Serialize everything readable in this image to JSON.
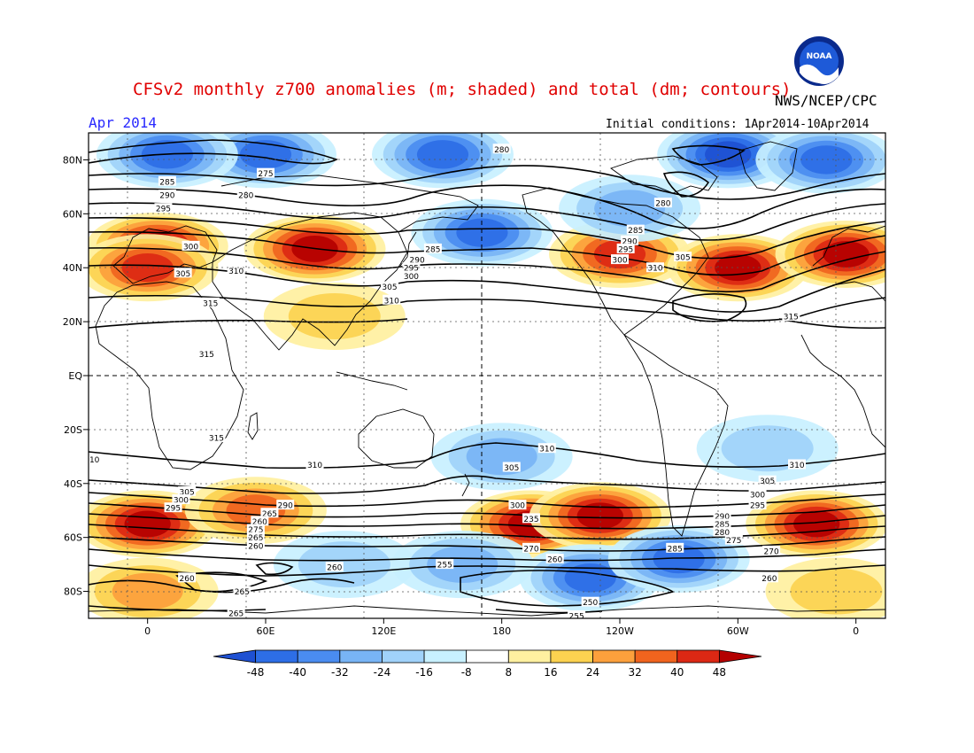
{
  "header": {
    "title": "CFSv2 monthly z700 anomalies (m; shaded) and total (dm; contours)",
    "agency": "NWS/NCEP/CPC",
    "period": "Apr 2014",
    "initial_conditions": "Initial conditions: 1Apr2014-10Apr2014",
    "logo_text": "NOAA"
  },
  "map": {
    "lat_labels": [
      "80N",
      "60N",
      "40N",
      "20N",
      "EQ",
      "20S",
      "40S",
      "60S",
      "80S"
    ],
    "lon_labels": [
      "0",
      "60E",
      "120E",
      "180",
      "120W",
      "60W",
      "0"
    ],
    "lat_values": [
      80,
      60,
      40,
      20,
      0,
      -20,
      -40,
      -60,
      -80
    ],
    "lon_values": [
      0,
      60,
      120,
      180,
      240,
      300,
      360
    ],
    "lon_range": [
      -30,
      375
    ],
    "lat_range": [
      -90,
      90
    ]
  },
  "colorbar": {
    "levels": [
      "-48",
      "-40",
      "-32",
      "-24",
      "-16",
      "-8",
      "8",
      "16",
      "24",
      "32",
      "40",
      "48"
    ],
    "colors": [
      "#1e50d2",
      "#2d6ee6",
      "#4a8cf0",
      "#78b4f5",
      "#a0d2fa",
      "#c8f0ff",
      "#ffffff",
      "#fff0a0",
      "#fcd250",
      "#fca03c",
      "#f0641e",
      "#dc2814",
      "#b40000"
    ]
  },
  "anomalies": [
    {
      "lon": 5,
      "lat": 48,
      "value": 48
    },
    {
      "lon": 85,
      "lat": 47,
      "value": 44
    },
    {
      "lon": 0,
      "lat": 40,
      "value": 40
    },
    {
      "lon": 60,
      "lat": 82,
      "value": -40
    },
    {
      "lon": 10,
      "lat": 82,
      "value": -40
    },
    {
      "lon": 150,
      "lat": 82,
      "value": -40
    },
    {
      "lon": 295,
      "lat": 82,
      "value": -44
    },
    {
      "lon": 345,
      "lat": 80,
      "value": -40
    },
    {
      "lon": 170,
      "lat": 53,
      "value": -40
    },
    {
      "lon": 240,
      "lat": 45,
      "value": 36
    },
    {
      "lon": 300,
      "lat": 40,
      "value": 44
    },
    {
      "lon": 355,
      "lat": 45,
      "value": 44
    },
    {
      "lon": 95,
      "lat": 22,
      "value": 12
    },
    {
      "lon": 245,
      "lat": 62,
      "value": -20
    },
    {
      "lon": 180,
      "lat": -30,
      "value": -24
    },
    {
      "lon": 315,
      "lat": -27,
      "value": -16
    },
    {
      "lon": 0,
      "lat": -55,
      "value": 48
    },
    {
      "lon": 55,
      "lat": -50,
      "value": 28
    },
    {
      "lon": 195,
      "lat": -55,
      "value": 48
    },
    {
      "lon": 230,
      "lat": -52,
      "value": 48
    },
    {
      "lon": 340,
      "lat": -55,
      "value": 48
    },
    {
      "lon": 100,
      "lat": -70,
      "value": -16
    },
    {
      "lon": 160,
      "lat": -70,
      "value": -24
    },
    {
      "lon": 225,
      "lat": -75,
      "value": -40
    },
    {
      "lon": 270,
      "lat": -68,
      "value": -36
    },
    {
      "lon": 0,
      "lat": -80,
      "value": 20
    },
    {
      "lon": 350,
      "lat": -80,
      "value": 16
    }
  ],
  "contour_labels": [
    {
      "text": "280",
      "lon": 180,
      "lat": 84
    },
    {
      "text": "275",
      "lon": 60,
      "lat": 75
    },
    {
      "text": "285",
      "lon": 10,
      "lat": 72
    },
    {
      "text": "280",
      "lon": 50,
      "lat": 67
    },
    {
      "text": "290",
      "lon": 10,
      "lat": 67
    },
    {
      "text": "295",
      "lon": 8,
      "lat": 62
    },
    {
      "text": "280",
      "lon": 262,
      "lat": 64
    },
    {
      "text": "285",
      "lon": 248,
      "lat": 54
    },
    {
      "text": "290",
      "lon": 245,
      "lat": 50
    },
    {
      "text": "295",
      "lon": 243,
      "lat": 47
    },
    {
      "text": "300",
      "lon": 240,
      "lat": 43
    },
    {
      "text": "305",
      "lon": 272,
      "lat": 44
    },
    {
      "text": "310",
      "lon": 258,
      "lat": 40
    },
    {
      "text": "300",
      "lon": 22,
      "lat": 48
    },
    {
      "text": "305",
      "lon": 18,
      "lat": 38
    },
    {
      "text": "310",
      "lon": 45,
      "lat": 39
    },
    {
      "text": "285",
      "lon": 145,
      "lat": 47
    },
    {
      "text": "290",
      "lon": 137,
      "lat": 43
    },
    {
      "text": "295",
      "lon": 134,
      "lat": 40
    },
    {
      "text": "300",
      "lon": 134,
      "lat": 37
    },
    {
      "text": "305",
      "lon": 123,
      "lat": 33
    },
    {
      "text": "310",
      "lon": 124,
      "lat": 28
    },
    {
      "text": "315",
      "lon": 32,
      "lat": 27
    },
    {
      "text": "315",
      "lon": 30,
      "lat": 8
    },
    {
      "text": "315",
      "lon": 327,
      "lat": 22
    },
    {
      "text": "315",
      "lon": 35,
      "lat": -23
    },
    {
      "text": "310",
      "lon": 85,
      "lat": -33
    },
    {
      "text": "310",
      "lon": 203,
      "lat": -27
    },
    {
      "text": "305",
      "lon": 185,
      "lat": -34
    },
    {
      "text": "310",
      "lon": 330,
      "lat": -33
    },
    {
      "text": "305",
      "lon": 315,
      "lat": -39
    },
    {
      "text": "300",
      "lon": 310,
      "lat": -44
    },
    {
      "text": "295",
      "lon": 310,
      "lat": -48
    },
    {
      "text": "290",
      "lon": 292,
      "lat": -52
    },
    {
      "text": "285",
      "lon": 292,
      "lat": -55
    },
    {
      "text": "280",
      "lon": 292,
      "lat": -58
    },
    {
      "text": "275",
      "lon": 298,
      "lat": -61
    },
    {
      "text": "270",
      "lon": 317,
      "lat": -65
    },
    {
      "text": "305",
      "lon": 20,
      "lat": -43
    },
    {
      "text": "300",
      "lon": 17,
      "lat": -46
    },
    {
      "text": "295",
      "lon": 13,
      "lat": -49
    },
    {
      "text": "290",
      "lon": 70,
      "lat": -48
    },
    {
      "text": "265",
      "lon": 62,
      "lat": -51
    },
    {
      "text": "260",
      "lon": 57,
      "lat": -54
    },
    {
      "text": "275",
      "lon": 55,
      "lat": -57
    },
    {
      "text": "265",
      "lon": 55,
      "lat": -60
    },
    {
      "text": "260",
      "lon": 55,
      "lat": -63
    },
    {
      "text": "300",
      "lon": 188,
      "lat": -48
    },
    {
      "text": "235",
      "lon": 195,
      "lat": -53
    },
    {
      "text": "270",
      "lon": 195,
      "lat": -64
    },
    {
      "text": "260",
      "lon": 207,
      "lat": -68
    },
    {
      "text": "285",
      "lon": 268,
      "lat": -64
    },
    {
      "text": "260",
      "lon": 95,
      "lat": -71
    },
    {
      "text": "255",
      "lon": 151,
      "lat": -70
    },
    {
      "text": "260",
      "lon": 20,
      "lat": -75
    },
    {
      "text": "265",
      "lon": 48,
      "lat": -80
    },
    {
      "text": "265",
      "lon": 45,
      "lat": -88
    },
    {
      "text": "260",
      "lon": 316,
      "lat": -75
    },
    {
      "text": "250",
      "lon": 225,
      "lat": -84
    },
    {
      "text": "255",
      "lon": 218,
      "lat": -89
    },
    {
      "text": "10",
      "lon": -27,
      "lat": -31
    }
  ]
}
